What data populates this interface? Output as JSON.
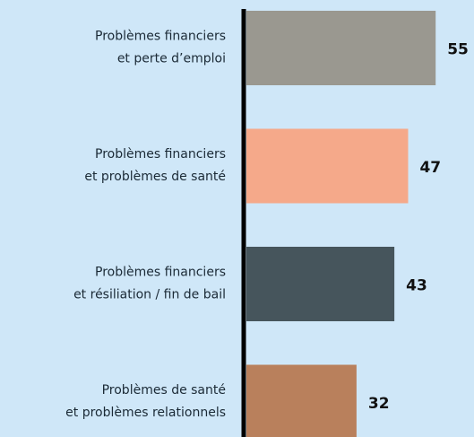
{
  "chart_data": {
    "type": "bar",
    "orientation": "horizontal",
    "categories": [
      [
        "Problèmes financiers",
        "et perte d’emploi"
      ],
      [
        "Problèmes financiers",
        "et problèmes de santé"
      ],
      [
        "Problèmes financiers",
        "et résiliation / fin de bail"
      ],
      [
        "Problèmes de santé",
        "et problèmes relationnels"
      ]
    ],
    "values": [
      55,
      47,
      43,
      32
    ],
    "colors": [
      "#9a9890",
      "#f5a98a",
      "#46555c",
      "#b9805c"
    ]
  }
}
